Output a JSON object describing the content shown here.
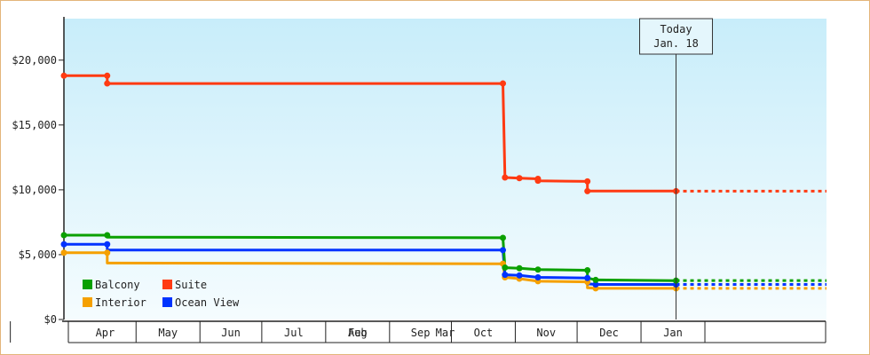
{
  "chart_data": {
    "type": "line",
    "title": "",
    "xlabel": "",
    "ylabel": "",
    "y_tick_labels": [
      "$0",
      "$5,000",
      "$10,000",
      "$15,000",
      "$20,000"
    ],
    "y_ticks": [
      0,
      5000,
      10000,
      15000,
      20000
    ],
    "ylim": [
      0,
      23200
    ],
    "x_tick_labels": [
      "Apr",
      "May",
      "Jun",
      "Jul",
      "Aug",
      "Sep",
      "Oct",
      "Nov",
      "Dec",
      "Jan",
      "Feb",
      "Mar"
    ],
    "xlim": [
      "2023-03-27",
      "2024-03-31"
    ],
    "grid": false,
    "legend_position": "bottom-left",
    "today": {
      "line1": "Today",
      "line2": "Jan. 18",
      "date": "2024-01-18"
    },
    "line_style": "step",
    "projection": "dotted flat line from today to the end of the axis",
    "series": [
      {
        "name": "Suite",
        "color": "#ff3a12",
        "points": [
          [
            "2023-03-27",
            18800
          ],
          [
            "2023-04-17",
            18800
          ],
          [
            "2023-04-17",
            18200
          ],
          [
            "2023-10-26",
            18200
          ],
          [
            "2023-10-27",
            10950
          ],
          [
            "2023-11-03",
            10900
          ],
          [
            "2023-11-12",
            10850
          ],
          [
            "2023-11-12",
            10700
          ],
          [
            "2023-12-06",
            10650
          ],
          [
            "2023-12-06",
            9900
          ],
          [
            "2024-01-18",
            9900
          ]
        ]
      },
      {
        "name": "Balcony",
        "color": "#0aa000",
        "points": [
          [
            "2023-03-27",
            6500
          ],
          [
            "2023-04-17",
            6500
          ],
          [
            "2023-04-17",
            6350
          ],
          [
            "2023-10-26",
            6300
          ],
          [
            "2023-10-27",
            4000
          ],
          [
            "2023-11-03",
            3950
          ],
          [
            "2023-11-12",
            3850
          ],
          [
            "2023-12-06",
            3800
          ],
          [
            "2023-12-06",
            3200
          ],
          [
            "2023-12-10",
            3050
          ],
          [
            "2024-01-18",
            3000
          ]
        ]
      },
      {
        "name": "Ocean View",
        "color": "#0033ff",
        "points": [
          [
            "2023-03-27",
            5800
          ],
          [
            "2023-04-17",
            5800
          ],
          [
            "2023-04-17",
            5350
          ],
          [
            "2023-10-26",
            5350
          ],
          [
            "2023-10-27",
            3450
          ],
          [
            "2023-11-03",
            3400
          ],
          [
            "2023-11-12",
            3250
          ],
          [
            "2023-12-06",
            3200
          ],
          [
            "2023-12-06",
            2750
          ],
          [
            "2023-12-10",
            2700
          ],
          [
            "2024-01-18",
            2700
          ]
        ]
      },
      {
        "name": "Interior",
        "color": "#f5a000",
        "points": [
          [
            "2023-03-27",
            5150
          ],
          [
            "2023-04-17",
            5150
          ],
          [
            "2023-04-17",
            4350
          ],
          [
            "2023-10-26",
            4300
          ],
          [
            "2023-10-27",
            3250
          ],
          [
            "2023-11-03",
            3150
          ],
          [
            "2023-11-12",
            2950
          ],
          [
            "2023-12-06",
            2900
          ],
          [
            "2023-12-06",
            2450
          ],
          [
            "2023-12-10",
            2400
          ],
          [
            "2024-01-18",
            2400
          ]
        ]
      }
    ],
    "markers": [
      {
        "series": "Suite",
        "dates": [
          "2023-03-27",
          "2023-04-17",
          "2023-04-17",
          "2023-10-26",
          "2023-10-27",
          "2023-11-03",
          "2023-11-12",
          "2023-11-12",
          "2023-12-06",
          "2023-12-06",
          "2024-01-18"
        ]
      },
      {
        "series": "Balcony",
        "dates": [
          "2023-03-27",
          "2023-04-17",
          "2023-10-26",
          "2023-10-27",
          "2023-11-03",
          "2023-11-12",
          "2023-12-06",
          "2023-12-10",
          "2024-01-18"
        ]
      },
      {
        "series": "Ocean View",
        "dates": [
          "2023-03-27",
          "2023-04-17",
          "2023-10-26",
          "2023-10-27",
          "2023-11-03",
          "2023-11-12",
          "2023-12-06",
          "2023-12-10",
          "2024-01-18"
        ]
      },
      {
        "series": "Interior",
        "dates": [
          "2023-03-27",
          "2023-04-17",
          "2023-10-26",
          "2023-10-27",
          "2023-11-03",
          "2023-11-12",
          "2023-12-06",
          "2023-12-10",
          "2024-01-18"
        ]
      }
    ],
    "legend": [
      {
        "label": "Balcony",
        "color": "#0aa000"
      },
      {
        "label": "Suite",
        "color": "#ff3a12"
      },
      {
        "label": "Interior",
        "color": "#f5a000"
      },
      {
        "label": "Ocean View",
        "color": "#0033ff"
      }
    ]
  }
}
